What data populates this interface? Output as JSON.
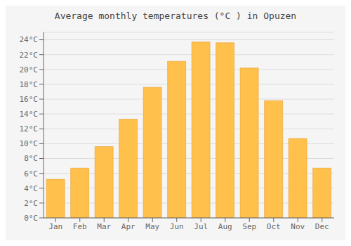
{
  "chart_data": {
    "type": "bar",
    "title": "Average monthly temperatures (°C ) in Opuzen",
    "categories": [
      "Jan",
      "Feb",
      "Mar",
      "Apr",
      "May",
      "Jun",
      "Jul",
      "Aug",
      "Sep",
      "Oct",
      "Nov",
      "Dec"
    ],
    "values": [
      5.2,
      6.7,
      9.6,
      13.3,
      17.6,
      21.1,
      23.7,
      23.6,
      20.2,
      15.8,
      10.7,
      6.7
    ],
    "color": "#FFC04C",
    "ylim": [
      0,
      25
    ],
    "yticks": [
      {
        "value": 0,
        "label": "0°C"
      },
      {
        "value": 2,
        "label": "2°C"
      },
      {
        "value": 4,
        "label": "4°C"
      },
      {
        "value": 6,
        "label": "6°C"
      },
      {
        "value": 8,
        "label": "8°C"
      },
      {
        "value": 10,
        "label": "10°C"
      },
      {
        "value": 12,
        "label": "12°C"
      },
      {
        "value": 14,
        "label": "14°C"
      },
      {
        "value": 16,
        "label": "16°C"
      },
      {
        "value": 18,
        "label": "18°C"
      },
      {
        "value": 20,
        "label": "20°C"
      },
      {
        "value": 22,
        "label": "22°C"
      },
      {
        "value": 24,
        "label": "24°C"
      }
    ],
    "grid": true
  }
}
